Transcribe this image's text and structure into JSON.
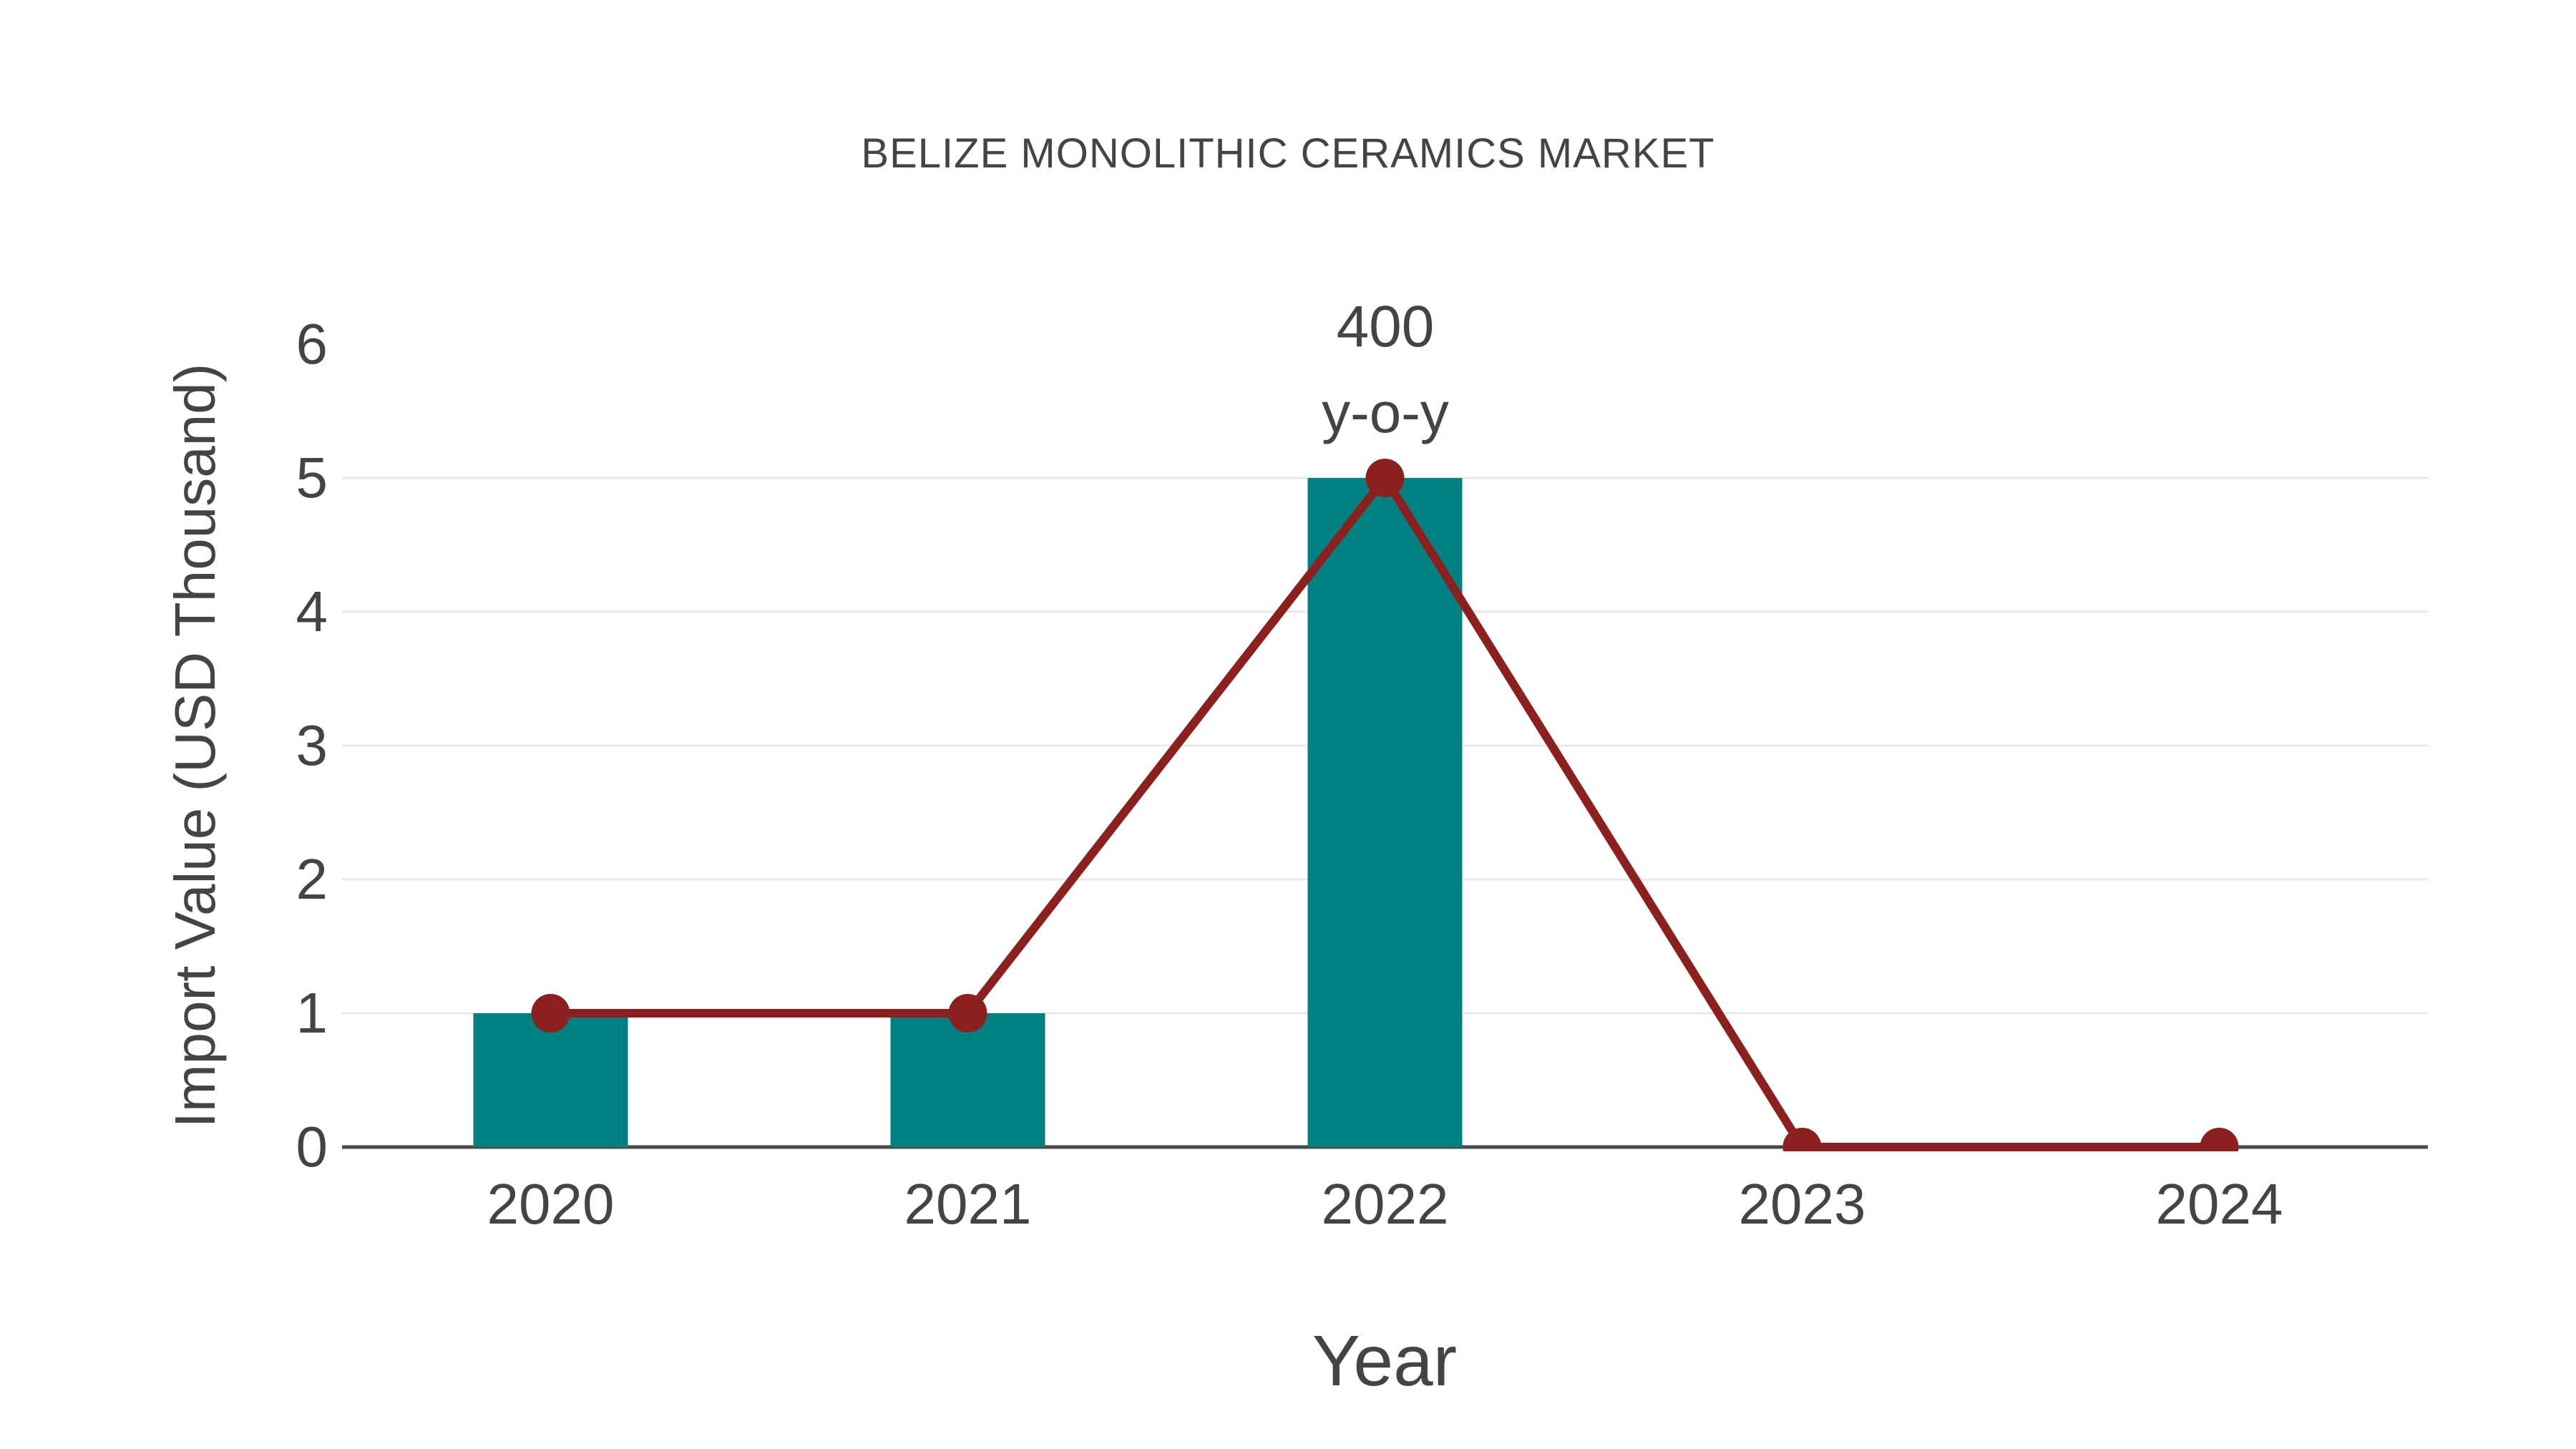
{
  "title": "BELIZE MONOLITHIC CERAMICS MARKET",
  "chart_data": {
    "type": "bar",
    "title": "BELIZE MONOLITHIC CERAMICS MARKET",
    "categories": [
      "2020",
      "2021",
      "2022",
      "2023",
      "2024"
    ],
    "series": [
      {
        "name": "import-value-bars",
        "type": "bar",
        "values": [
          1,
          1,
          5,
          0,
          0
        ]
      },
      {
        "name": "import-value-line",
        "type": "line",
        "values": [
          1,
          1,
          5,
          0,
          0
        ]
      }
    ],
    "xlabel": "Year",
    "ylabel": "Import Value (USD Thousand)",
    "yticks": [
      0,
      1,
      2,
      3,
      4,
      5,
      6
    ],
    "ylim": [
      0,
      6
    ],
    "grid": true,
    "legend_position": "none",
    "annotation": {
      "line1": "400",
      "line2": "y-o-y",
      "category": "2022",
      "value": 5
    }
  },
  "colors": {
    "bar": "#008080",
    "line": "#8B2020",
    "marker": "#8B2020",
    "text": "#444444",
    "grid": "#E8E8E8",
    "axis": "#4A4A4A",
    "background": "#FFFFFF"
  }
}
